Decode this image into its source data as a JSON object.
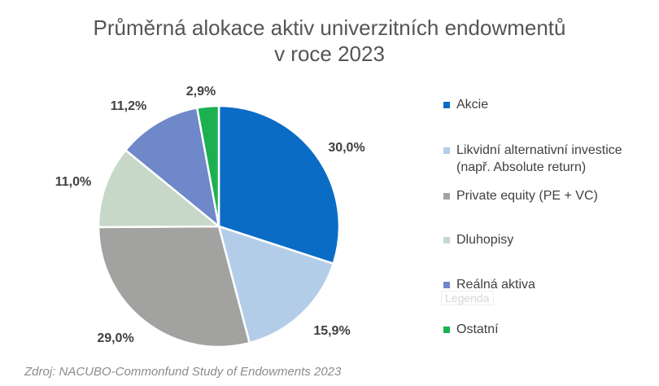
{
  "chart_data": {
    "type": "pie",
    "title": "Průměrná alokace aktiv univerzitních endowmentů",
    "subtitle": "v roce 2023",
    "categories": [
      "Akcie",
      "Likvidní alternativní investice\n(např. Absolute return)",
      "Private equity (PE + VC)",
      "Dluhopisy",
      "Reálná aktiva",
      "Ostatní"
    ],
    "values": [
      30.0,
      15.9,
      29.0,
      11.0,
      11.2,
      2.9
    ],
    "value_labels": [
      "30,0%",
      "15,9%",
      "29,0%",
      "11,0%",
      "11,2%",
      "2,9%"
    ],
    "colors": [
      "#0a6cc4",
      "#b3cde9",
      "#a2a3a0",
      "#c7d8c8",
      "#6f88c9",
      "#1cb050"
    ],
    "legend_position": "right",
    "legend_ghost_text": "Legenda",
    "source": "Zdroj: NACUBO-Commonfund Study of Endowments 2023"
  }
}
